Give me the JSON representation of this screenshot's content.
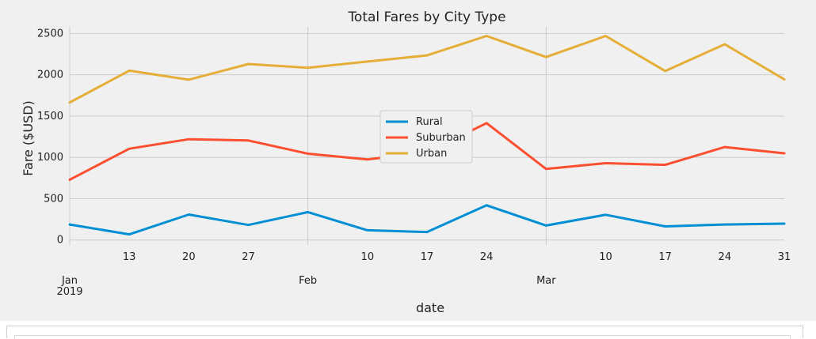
{
  "chart_data": {
    "type": "line",
    "title": "Total Fares by City Type",
    "xlabel": "date",
    "ylabel": "Fare ($USD)",
    "x_dates": [
      "2019-01-06",
      "2019-01-13",
      "2019-01-20",
      "2019-01-27",
      "2019-02-03",
      "2019-02-10",
      "2019-02-17",
      "2019-02-24",
      "2019-03-03",
      "2019-03-10",
      "2019-03-17",
      "2019-03-24",
      "2019-03-31"
    ],
    "xlim": [
      "2019-01-06",
      "2019-03-31"
    ],
    "ylim": [
      -60,
      2580
    ],
    "yticks": [
      0,
      500,
      1000,
      1500,
      2000,
      2500
    ],
    "x_ticks": [
      {
        "date": "2019-01-06",
        "label": "Jan",
        "label2": "2019",
        "major": true
      },
      {
        "date": "2019-01-13",
        "label": "13",
        "label2": "",
        "major": false
      },
      {
        "date": "2019-01-20",
        "label": "20",
        "label2": "",
        "major": false
      },
      {
        "date": "2019-01-27",
        "label": "27",
        "label2": "",
        "major": false
      },
      {
        "date": "2019-02-03",
        "label": "Feb",
        "label2": "",
        "major": true
      },
      {
        "date": "2019-02-10",
        "label": "10",
        "label2": "",
        "major": false
      },
      {
        "date": "2019-02-17",
        "label": "17",
        "label2": "",
        "major": false
      },
      {
        "date": "2019-02-24",
        "label": "24",
        "label2": "",
        "major": false
      },
      {
        "date": "2019-03-03",
        "label": "Mar",
        "label2": "",
        "major": true
      },
      {
        "date": "2019-03-10",
        "label": "10",
        "label2": "",
        "major": false
      },
      {
        "date": "2019-03-17",
        "label": "17",
        "label2": "",
        "major": false
      },
      {
        "date": "2019-03-24",
        "label": "24",
        "label2": "",
        "major": false
      },
      {
        "date": "2019-03-31",
        "label": "31",
        "label2": "",
        "major": false
      }
    ],
    "grid": true,
    "legend_position": "center",
    "series": [
      {
        "name": "Rural",
        "color": "#008fd5",
        "values": [
          188,
          68,
          308,
          182,
          338,
          118,
          97,
          420,
          175,
          305,
          165,
          188,
          198
        ]
      },
      {
        "name": "Suburban",
        "color": "#fc4f30",
        "values": [
          730,
          1105,
          1220,
          1205,
          1045,
          975,
          1060,
          1415,
          860,
          930,
          910,
          1125,
          1050
        ]
      },
      {
        "name": "Urban",
        "color": "#e5ae38",
        "values": [
          1665,
          2050,
          1940,
          2130,
          2085,
          2160,
          2235,
          2470,
          2215,
          2470,
          2045,
          2370,
          1945
        ]
      }
    ]
  }
}
